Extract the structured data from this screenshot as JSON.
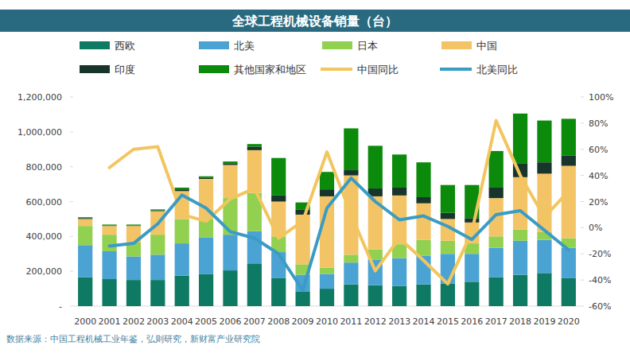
{
  "chart_data": {
    "type": "bar",
    "title": "全球工程机械设备销量（台）",
    "source": "数据来源：中国工程机械工业年鉴，弘则研究，新财富产业研究院",
    "stacked": true,
    "grid": false,
    "categories": [
      "2000",
      "2001",
      "2002",
      "2003",
      "2004",
      "2005",
      "2006",
      "2007",
      "2008",
      "2009",
      "2010",
      "2011",
      "2012",
      "2013",
      "2014",
      "2015",
      "2016",
      "2017",
      "2018",
      "2019",
      "2020"
    ],
    "ylim": [
      0,
      1200000
    ],
    "yticks": [
      {
        "value": 0,
        "label": "-"
      },
      {
        "value": 200000,
        "label": "200,000"
      },
      {
        "value": 400000,
        "label": "400,000"
      },
      {
        "value": 600000,
        "label": "600,000"
      },
      {
        "value": 800000,
        "label": "800,000"
      },
      {
        "value": 1000000,
        "label": "1,000,000"
      },
      {
        "value": 1200000,
        "label": "1,200,000"
      }
    ],
    "y2lim": [
      -60,
      100
    ],
    "y2ticks": [
      {
        "value": -60,
        "label": "-60%"
      },
      {
        "value": -40,
        "label": "-40%"
      },
      {
        "value": -20,
        "label": "-20%"
      },
      {
        "value": 0,
        "label": "0%"
      },
      {
        "value": 20,
        "label": "20%"
      },
      {
        "value": 40,
        "label": "40%"
      },
      {
        "value": 60,
        "label": "60%"
      },
      {
        "value": 80,
        "label": "80%"
      },
      {
        "value": 100,
        "label": "100%"
      }
    ],
    "series": [
      {
        "name": "西欧",
        "type": "bar",
        "color": "#0f7a64",
        "values": [
          165000,
          155000,
          150000,
          150000,
          175000,
          185000,
          205000,
          245000,
          160000,
          85000,
          100000,
          125000,
          120000,
          115000,
          125000,
          130000,
          140000,
          165000,
          180000,
          190000,
          160000
        ]
      },
      {
        "name": "北美",
        "type": "bar",
        "color": "#4ba3d3",
        "values": [
          185000,
          160000,
          135000,
          145000,
          185000,
          210000,
          205000,
          185000,
          150000,
          95000,
          85000,
          125000,
          145000,
          160000,
          165000,
          170000,
          160000,
          170000,
          195000,
          190000,
          175000
        ]
      },
      {
        "name": "日本",
        "type": "bar",
        "color": "#92d050",
        "values": [
          110000,
          95000,
          80000,
          115000,
          140000,
          105000,
          210000,
          220000,
          90000,
          60000,
          35000,
          45000,
          60000,
          80000,
          90000,
          75000,
          60000,
          65000,
          65000,
          45000,
          55000
        ]
      },
      {
        "name": "中国",
        "type": "bar",
        "color": "#f3c466",
        "values": [
          40000,
          50000,
          95000,
          135000,
          160000,
          230000,
          190000,
          245000,
          200000,
          285000,
          410000,
          455000,
          305000,
          280000,
          210000,
          125000,
          120000,
          220000,
          300000,
          335000,
          415000
        ]
      },
      {
        "name": "印度",
        "type": "bar",
        "color": "#17352a",
        "values": [
          5000,
          3000,
          3000,
          5000,
          10000,
          5000,
          10000,
          20000,
          35000,
          30000,
          40000,
          30000,
          45000,
          45000,
          35000,
          35000,
          25000,
          60000,
          80000,
          65000,
          60000
        ]
      },
      {
        "name": "其他国家和地区",
        "type": "bar",
        "color": "#0b8a0b",
        "values": [
          5000,
          5000,
          5000,
          5000,
          10000,
          10000,
          10000,
          15000,
          215000,
          40000,
          100000,
          240000,
          245000,
          190000,
          200000,
          160000,
          190000,
          210000,
          285000,
          240000,
          210000
        ]
      },
      {
        "name": "中国同比",
        "type": "line",
        "axis": "y2",
        "color": "#f2c55e",
        "values": [
          null,
          46,
          60,
          62,
          10,
          5,
          22,
          30,
          -8,
          5,
          58,
          10,
          -33,
          -8,
          -25,
          -43,
          -3,
          82,
          40,
          8,
          28
        ]
      },
      {
        "name": "北美同比",
        "type": "line",
        "axis": "y2",
        "color": "#3a9cc4",
        "values": [
          null,
          -14,
          -12,
          3,
          25,
          15,
          -3,
          -8,
          -20,
          -48,
          15,
          38,
          20,
          6,
          9,
          1,
          -9,
          10,
          13,
          -2,
          -17
        ]
      }
    ]
  }
}
